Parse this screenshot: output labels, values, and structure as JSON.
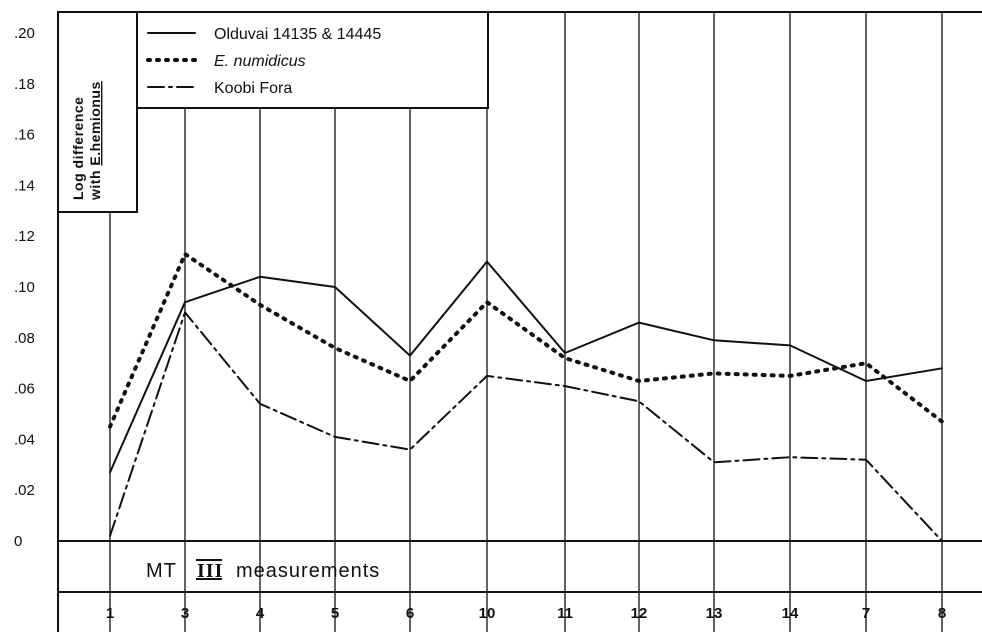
{
  "chart_data": {
    "type": "line",
    "categories": [
      "1",
      "3",
      "4",
      "5",
      "6",
      "10",
      "11",
      "12",
      "13",
      "14",
      "7",
      "8"
    ],
    "ylim": [
      0,
      0.2
    ],
    "yticks": [
      ".20",
      ".18",
      ".16",
      ".14",
      ".12",
      ".10",
      ".08",
      ".06",
      ".04",
      ".02",
      "0"
    ],
    "ylabel_line1": "Log difference",
    "ylabel_line2_prefix": "with ",
    "ylabel_line2_taxon": "E.hemionus",
    "xlabel_band": {
      "prefix": "MT",
      "numeral": "III",
      "suffix": "measurements"
    },
    "legend_placement": "top-left",
    "grid": "vertical lines at each category",
    "series": [
      {
        "name": "Olduvai 14135 & 14445",
        "style": "solid",
        "values": [
          0.027,
          0.094,
          0.104,
          0.1,
          0.073,
          0.11,
          0.074,
          0.086,
          0.079,
          0.077,
          0.063,
          0.068
        ]
      },
      {
        "name": "E. numidicus",
        "style": "dotted",
        "values": [
          0.045,
          0.113,
          0.093,
          0.076,
          0.063,
          0.094,
          0.072,
          0.063,
          0.066,
          0.065,
          0.07,
          0.047
        ]
      },
      {
        "name": "Koobi Fora",
        "style": "dash-dot",
        "values": [
          0.002,
          0.09,
          0.054,
          0.041,
          0.036,
          0.065,
          0.061,
          0.055,
          0.031,
          0.033,
          0.032,
          0.0
        ]
      }
    ]
  }
}
